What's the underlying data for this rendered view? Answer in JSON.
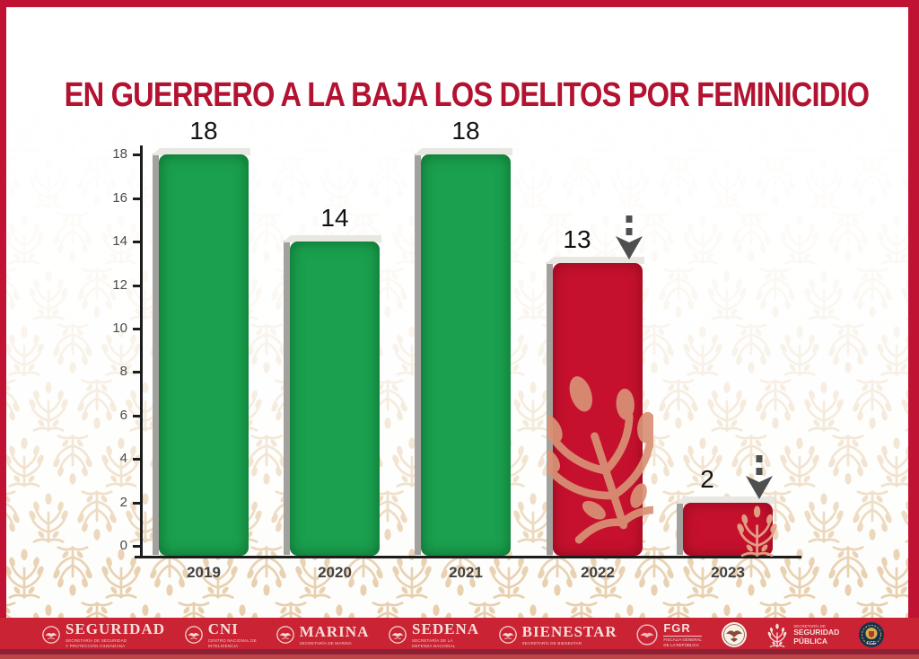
{
  "title": "EN GUERRERO A LA BAJA LOS DELITOS POR FEMINICIDIO",
  "chart_data": {
    "type": "bar",
    "title": "EN GUERRERO A LA BAJA LOS DELITOS POR FEMINICIDIO",
    "categories": [
      "2019",
      "2020",
      "2021",
      "2022",
      "2023"
    ],
    "values": [
      18,
      14,
      18,
      13,
      2
    ],
    "bar_colors": [
      "green",
      "green",
      "green",
      "red",
      "red"
    ],
    "yticks": [
      0,
      2,
      4,
      6,
      8,
      10,
      12,
      14,
      16,
      18
    ],
    "ylim": [
      0,
      18
    ],
    "xlabel": "",
    "ylabel": "",
    "grid": false,
    "legend": "none",
    "annotations": [
      {
        "target": "2022",
        "type": "down-arrow"
      },
      {
        "target": "2023",
        "type": "down-arrow"
      }
    ]
  },
  "colors": {
    "frame_red": "#c01334",
    "title_red": "#b31231",
    "bar_green": "#1aa04e",
    "bar_red": "#c6112e",
    "footer_red": "#c92334",
    "footer_dark_stripe": "#8e2036",
    "pattern_tan": "#e2c49a",
    "arrow_gray": "#4f4f4f",
    "axis_black": "#1c1c1c"
  },
  "footer": {
    "logos": [
      {
        "id": "seguridad",
        "kind": "wordmark",
        "label": "SEGURIDAD",
        "sub": "SECRETARÍA DE SEGURIDAD\nY PROTECCIÓN CIUDADANA"
      },
      {
        "id": "cni",
        "kind": "wordmark",
        "label": "CNI",
        "sub": "CENTRO NACIONAL DE\nINTELIGENCIA"
      },
      {
        "id": "marina",
        "kind": "wordmark",
        "label": "MARINA",
        "sub": "SECRETARÍA DE MARINA"
      },
      {
        "id": "sedena",
        "kind": "wordmark",
        "label": "SEDENA",
        "sub": "SECRETARÍA DE LA\nDEFENSA NACIONAL"
      },
      {
        "id": "bienestar",
        "kind": "wordmark",
        "label": "BIENESTAR",
        "sub": "SECRETARÍA DE BIENESTAR"
      },
      {
        "id": "fgr",
        "kind": "fgr",
        "label": "FGR",
        "sub": "FISCALÍA GENERAL\nDE LA REPÚBLICA"
      },
      {
        "id": "eagle-seal",
        "kind": "seal",
        "label": "",
        "sub": ""
      },
      {
        "id": "seguridad-publica",
        "kind": "tree",
        "label": "SEGURIDAD\nPÚBLICA",
        "sub": "SECRETARÍA DE"
      },
      {
        "id": "fge",
        "kind": "badge",
        "label": "FGE",
        "sub": ""
      }
    ]
  }
}
